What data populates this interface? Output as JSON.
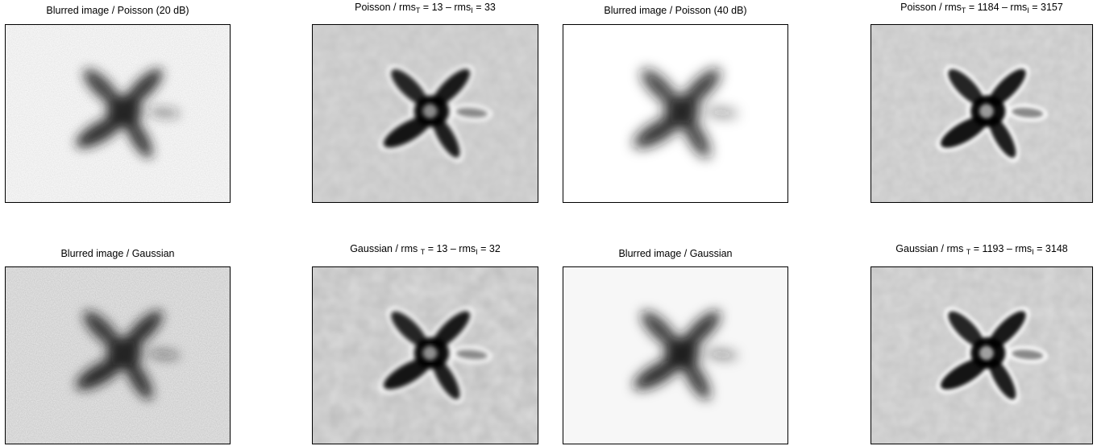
{
  "panels": [
    {
      "id": "r1c1",
      "title": {
        "plain": "Blurred image / Poisson (20 dB)"
      }
    },
    {
      "id": "r1c2",
      "title": {
        "pre": "Poisson / rms",
        "sub1": "T",
        "mid": " = 13  –  rms",
        "sub2": "I",
        "post": " = 33"
      }
    },
    {
      "id": "r1c3",
      "title": {
        "plain": "Blurred image / Poisson (40 dB)"
      }
    },
    {
      "id": "r1c4",
      "title": {
        "pre": "Poisson / rms",
        "sub1": "T",
        "mid": " = 1184  –  rms",
        "sub2": "I",
        "post": " = 3157"
      }
    },
    {
      "id": "r2c1",
      "title": {
        "plain": "Blurred image / Gaussian"
      }
    },
    {
      "id": "r2c2",
      "title": {
        "pre": "Gaussian / rms ",
        "sub1": "T",
        "mid": " = 13  –  rms",
        "sub2": "I",
        "post": " = 32"
      }
    },
    {
      "id": "r2c3",
      "title": {
        "plain": "Blurred image / Gaussian"
      }
    },
    {
      "id": "r2c4",
      "title": {
        "pre": "Gaussian / rms ",
        "sub1": "T",
        "mid": " = 1193  –  rms",
        "sub2": "I",
        "post": " = 3148"
      }
    }
  ]
}
